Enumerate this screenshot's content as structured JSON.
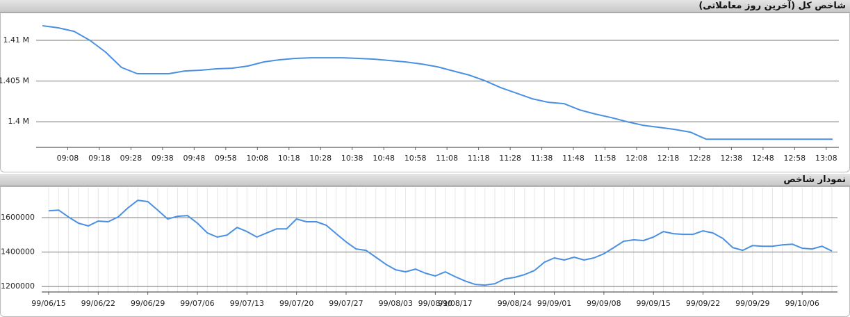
{
  "chart_data": [
    {
      "type": "line",
      "title": "شاخص کل (آخرین روز معاملاتی)",
      "x": [
        "09:00",
        "09:05",
        "09:10",
        "09:15",
        "09:20",
        "09:25",
        "09:30",
        "09:35",
        "09:40",
        "09:45",
        "09:50",
        "09:55",
        "10:00",
        "10:05",
        "10:10",
        "10:15",
        "10:20",
        "10:25",
        "10:30",
        "10:35",
        "10:40",
        "10:45",
        "10:50",
        "10:55",
        "11:00",
        "11:05",
        "11:10",
        "11:15",
        "11:20",
        "11:25",
        "11:30",
        "11:35",
        "11:40",
        "11:45",
        "11:50",
        "11:55",
        "12:00",
        "12:05",
        "12:10",
        "12:15",
        "12:20",
        "12:25",
        "12:30",
        "12:35",
        "12:40",
        "12:45",
        "12:50",
        "12:55",
        "13:00",
        "13:05",
        "13:10"
      ],
      "series": [
        {
          "name": null,
          "color": "#4a90e2",
          "values": [
            1411800,
            1411540,
            1411110,
            1410000,
            1408550,
            1406670,
            1405900,
            1405900,
            1405900,
            1406240,
            1406330,
            1406500,
            1406580,
            1406840,
            1407350,
            1407610,
            1407780,
            1407860,
            1407860,
            1407860,
            1407780,
            1407690,
            1407520,
            1407350,
            1407090,
            1406750,
            1406240,
            1405730,
            1405040,
            1404190,
            1403500,
            1402820,
            1402390,
            1402220,
            1401450,
            1400940,
            1400510,
            1400000,
            1399570,
            1399320,
            1399060,
            1398720,
            1397860,
            1397860,
            1397860,
            1397860,
            1397860,
            1397860,
            1397860,
            1397860,
            1397860
          ]
        }
      ],
      "xlim": [
        "08:58",
        "13:12"
      ],
      "xticks": [
        "09:08",
        "09:18",
        "09:28",
        "09:38",
        "09:48",
        "09:58",
        "10:08",
        "10:18",
        "10:28",
        "10:38",
        "10:48",
        "10:58",
        "11:08",
        "11:18",
        "11:28",
        "11:38",
        "11:48",
        "11:58",
        "12:08",
        "12:18",
        "12:28",
        "12:38",
        "12:48",
        "12:58",
        "13:08"
      ],
      "ylim": [
        1396850,
        1413250
      ],
      "yticks": [
        {
          "value": 1400000,
          "label": "1.4 M"
        },
        {
          "value": 1405000,
          "label": "1.405 M"
        },
        {
          "value": 1410000,
          "label": "1.41 M"
        }
      ],
      "grid": true
    },
    {
      "type": "line",
      "title": "نمودار شاخص",
      "categories": [
        "99/06/15",
        null,
        null,
        null,
        null,
        "99/06/22",
        null,
        null,
        null,
        null,
        "99/06/29",
        null,
        null,
        null,
        null,
        "99/07/06",
        null,
        null,
        null,
        null,
        "99/07/13",
        null,
        null,
        null,
        null,
        "99/07/20",
        null,
        null,
        null,
        null,
        "99/07/27",
        null,
        null,
        null,
        null,
        "99/08/03",
        null,
        null,
        null,
        "99/08/10",
        null,
        "99/08/17",
        null,
        null,
        null,
        null,
        null,
        "99/08/24",
        null,
        null,
        null,
        "99/09/01",
        null,
        null,
        null,
        null,
        "99/09/08",
        null,
        null,
        null,
        null,
        "99/09/15",
        null,
        null,
        null,
        null,
        "99/09/22",
        null,
        null,
        null,
        null,
        "99/09/29",
        null,
        null,
        null,
        null,
        "99/10/06",
        null,
        null,
        null
      ],
      "series": [
        {
          "name": null,
          "color": "#4a90e2",
          "values": [
            1640000,
            1644000,
            1604000,
            1568000,
            1552000,
            1580000,
            1576000,
            1604000,
            1657000,
            1701000,
            1693000,
            1644000,
            1592000,
            1608000,
            1612000,
            1568000,
            1511000,
            1487000,
            1499000,
            1543000,
            1519000,
            1487000,
            1511000,
            1535000,
            1535000,
            1592000,
            1576000,
            1576000,
            1556000,
            1507000,
            1459000,
            1418000,
            1410000,
            1370000,
            1329000,
            1297000,
            1285000,
            1301000,
            1277000,
            1261000,
            1285000,
            1257000,
            1232000,
            1212000,
            1208000,
            1216000,
            1244000,
            1253000,
            1269000,
            1293000,
            1341000,
            1366000,
            1354000,
            1370000,
            1354000,
            1366000,
            1390000,
            1426000,
            1463000,
            1471000,
            1467000,
            1487000,
            1519000,
            1507000,
            1503000,
            1503000,
            1523000,
            1511000,
            1479000,
            1426000,
            1410000,
            1438000,
            1434000,
            1434000,
            1442000,
            1446000,
            1422000,
            1418000,
            1434000,
            1406000
          ]
        }
      ],
      "ylim": [
        1168000,
        1774000
      ],
      "yticks": [
        1200000,
        1400000,
        1600000
      ],
      "grid": true
    }
  ]
}
